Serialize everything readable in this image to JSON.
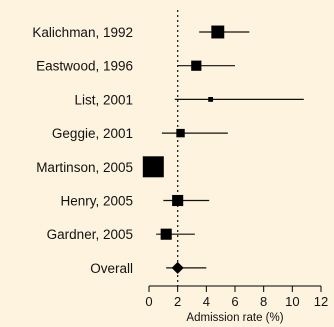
{
  "chart_data": {
    "type": "forest",
    "title": "",
    "xlabel": "Admission rate (%)",
    "xlim": [
      0,
      12
    ],
    "xticks": [
      0,
      2,
      4,
      6,
      8,
      10,
      12
    ],
    "reference_line": 2,
    "studies": [
      {
        "label": "Kalichman, 1992",
        "estimate": 4.8,
        "ci": [
          3.5,
          7.0
        ],
        "weight": 0.55
      },
      {
        "label": "Eastwood, 1996",
        "estimate": 3.3,
        "ci": [
          2.0,
          6.0
        ],
        "weight": 0.4
      },
      {
        "label": "List, 2001",
        "estimate": 4.3,
        "ci": [
          1.8,
          10.8
        ],
        "weight": 0.1
      },
      {
        "label": "Geggie, 2001",
        "estimate": 2.2,
        "ci": [
          0.9,
          5.5
        ],
        "weight": 0.3
      },
      {
        "label": "Martinson, 2005",
        "estimate": 0.3,
        "ci": [
          0.1,
          0.6
        ],
        "weight": 1.0
      },
      {
        "label": "Henry, 2005",
        "estimate": 2.0,
        "ci": [
          1.0,
          4.2
        ],
        "weight": 0.45
      },
      {
        "label": "Gardner, 2005",
        "estimate": 1.2,
        "ci": [
          0.5,
          3.2
        ],
        "weight": 0.45
      }
    ],
    "overall": {
      "label": "Overall",
      "estimate": 2.0,
      "ci": [
        1.2,
        4.0
      ]
    }
  }
}
